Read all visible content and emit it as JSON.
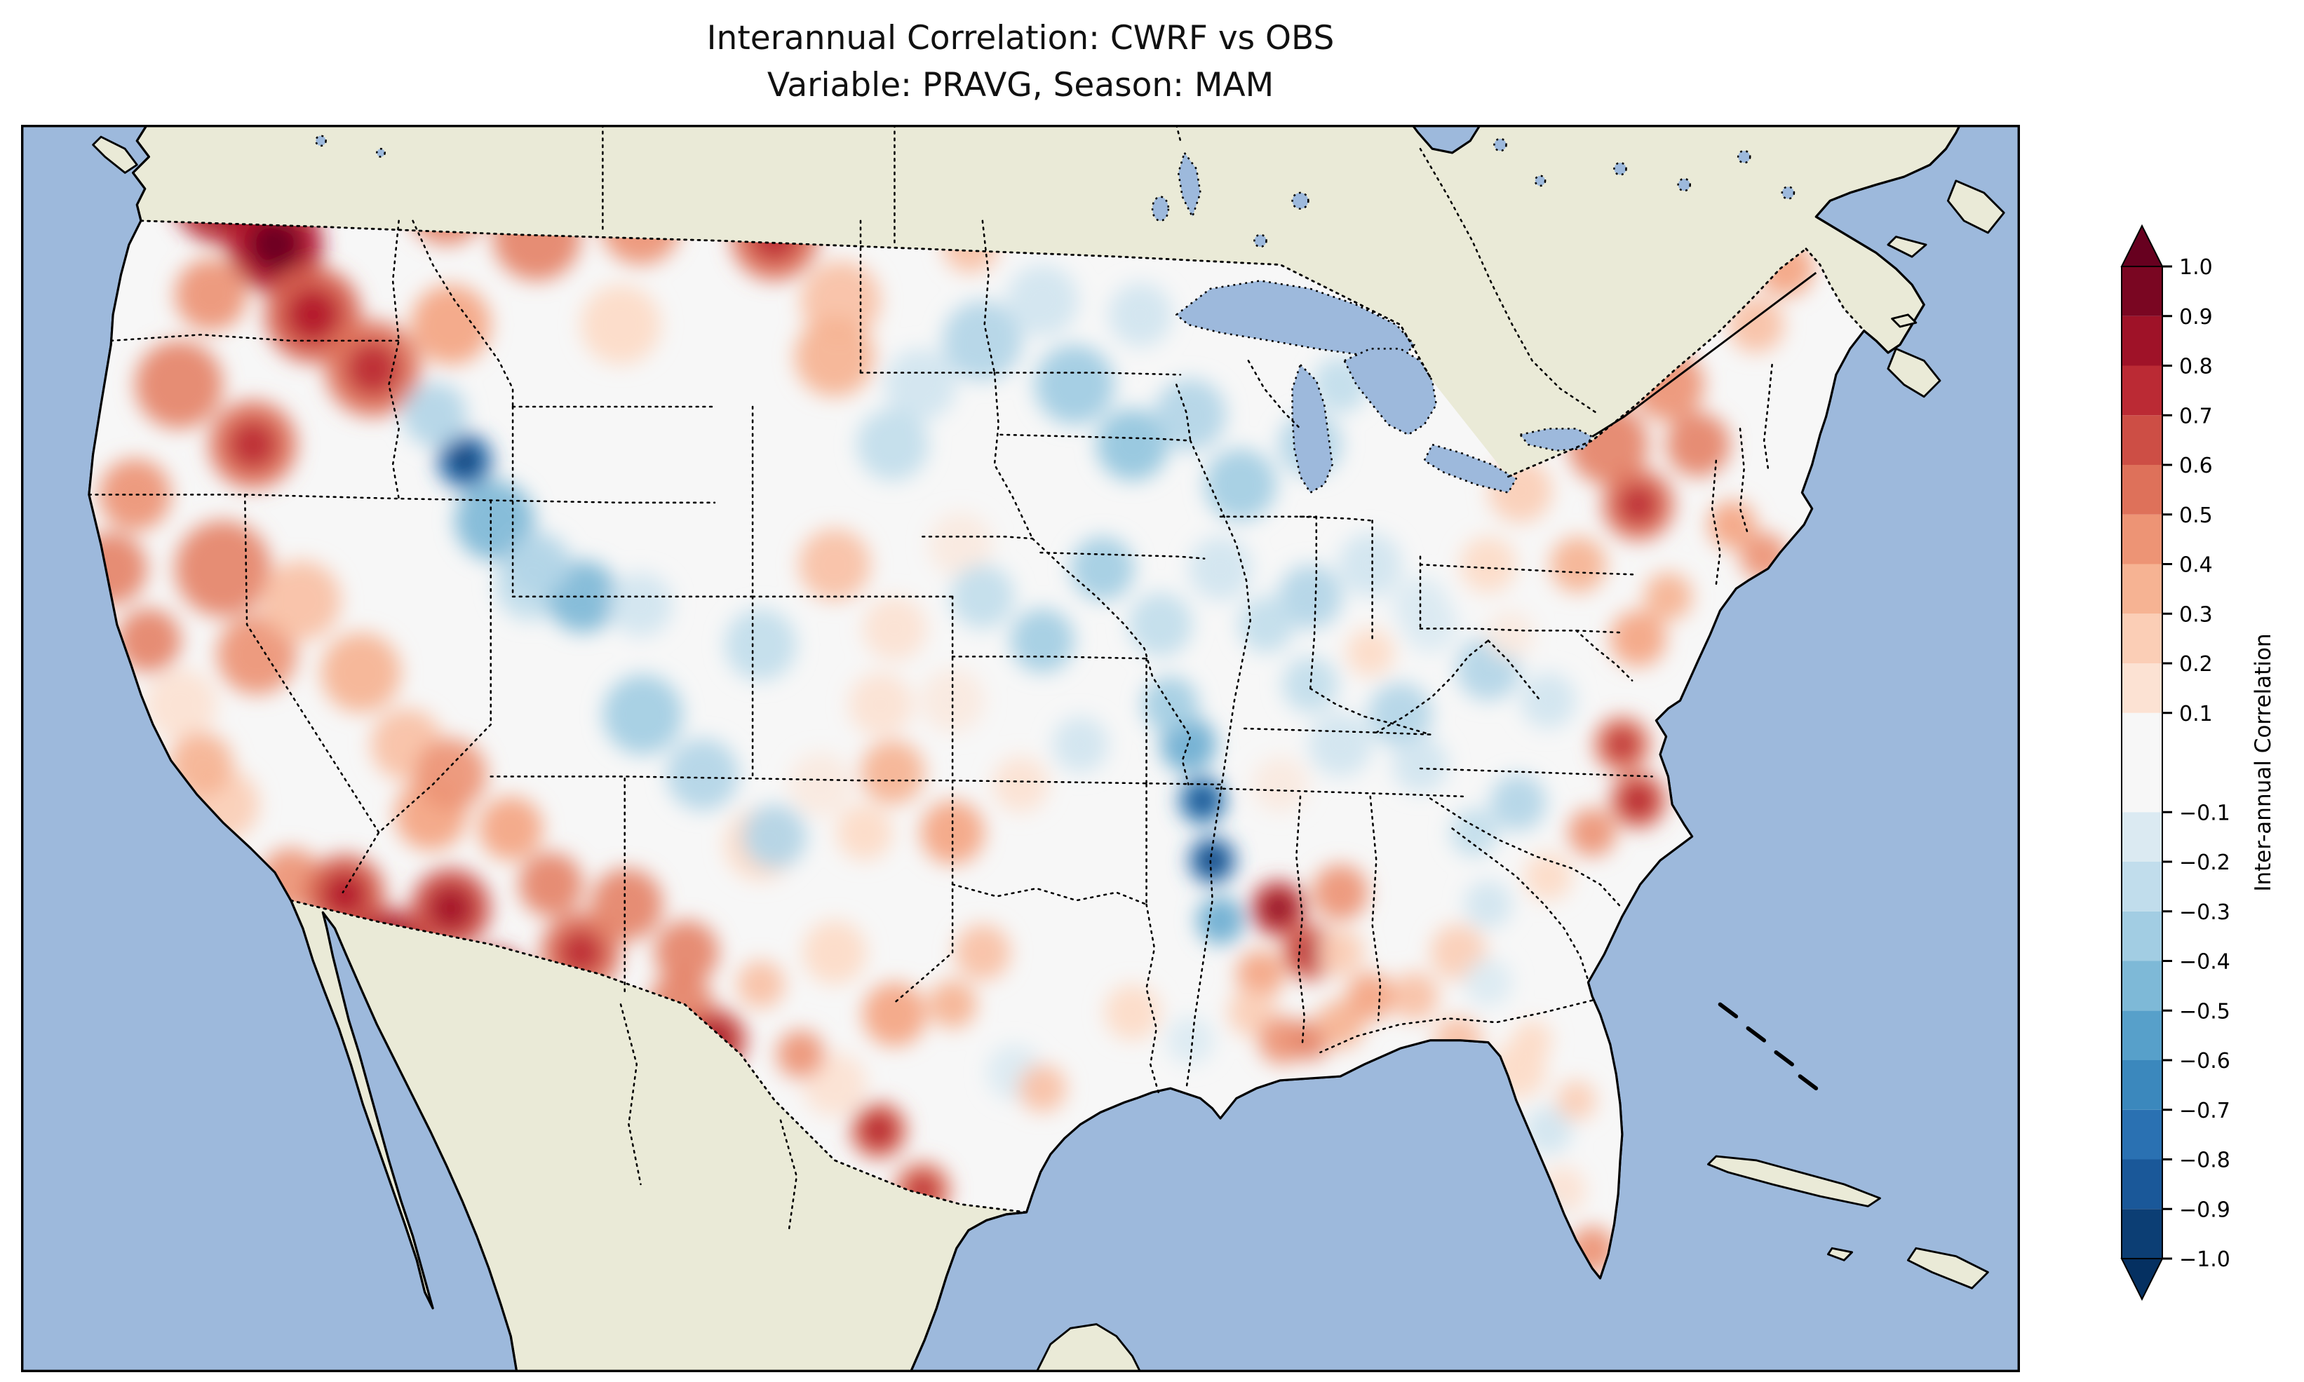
{
  "title": {
    "line1": "Interannual Correlation: CWRF vs OBS",
    "line2": "Variable: PRAVG, Season: MAM"
  },
  "colors": {
    "ocean": "#9db9dc",
    "land": "#eaead7",
    "coastline": "#000000",
    "field_base": "#f7f7f7",
    "rdbu_r_anchors": [
      "#053061",
      "#2166ac",
      "#4393c3",
      "#92c5de",
      "#d1e5f0",
      "#f7f7f7",
      "#fddbc7",
      "#f4a582",
      "#d6604d",
      "#b2182b",
      "#67001f"
    ]
  },
  "chart_data": {
    "type": "heatmap",
    "title": "Interannual Correlation: CWRF vs OBS",
    "subtitle": "Variable: PRAVG, Season: MAM",
    "comparison": "CWRF vs OBS",
    "variable": "PRAVG",
    "season": "MAM",
    "colorbar": {
      "label": "Inter-annual Correlation",
      "colormap": "RdBu_r",
      "extend": "both",
      "range": [
        -1.0,
        1.0
      ],
      "ticks": [
        1.0,
        0.9,
        0.8,
        0.7,
        0.6,
        0.5,
        0.4,
        0.3,
        0.2,
        0.1,
        -0.1,
        -0.2,
        -0.3,
        -0.4,
        -0.5,
        -0.6,
        -0.7,
        -0.8,
        -0.9,
        -1.0
      ],
      "levels": [
        -1.0,
        -0.9,
        -0.8,
        -0.7,
        -0.6,
        -0.5,
        -0.4,
        -0.3,
        -0.2,
        -0.1,
        0.1,
        0.2,
        0.3,
        0.4,
        0.5,
        0.6,
        0.7,
        0.8,
        0.9,
        1.0
      ]
    },
    "samples_note": "Approximate correlation field sampled off the map. Each sample is [x, y, value, radius] in map viewBox coords (0-1000 wide, 0-624 tall).",
    "samples": [
      [
        101,
        34,
        0.75,
        26
      ],
      [
        127,
        60,
        0.8,
        24
      ],
      [
        146,
        95,
        0.6,
        24
      ],
      [
        95,
        85,
        0.45,
        18
      ],
      [
        68,
        12,
        -0.2,
        12
      ],
      [
        138,
        26,
        0.65,
        18
      ],
      [
        213,
        40,
        0.5,
        20
      ],
      [
        79,
        130,
        0.5,
        22
      ],
      [
        116,
        160,
        0.55,
        22
      ],
      [
        57,
        185,
        0.45,
        18
      ],
      [
        45,
        222,
        0.5,
        18
      ],
      [
        101,
        222,
        0.5,
        24
      ],
      [
        118,
        265,
        0.45,
        20
      ],
      [
        64,
        258,
        0.5,
        16
      ],
      [
        80,
        290,
        0.15,
        18
      ],
      [
        101,
        340,
        0.25,
        18
      ],
      [
        135,
        378,
        0.45,
        16
      ],
      [
        90,
        320,
        0.35,
        16
      ],
      [
        140,
        238,
        0.3,
        20
      ],
      [
        170,
        274,
        0.35,
        20
      ],
      [
        193,
        310,
        0.3,
        18
      ],
      [
        205,
        345,
        0.4,
        18
      ],
      [
        176,
        122,
        0.55,
        24
      ],
      [
        215,
        100,
        0.4,
        20
      ],
      [
        258,
        56,
        0.5,
        22
      ],
      [
        310,
        50,
        0.45,
        20
      ],
      [
        377,
        56,
        0.55,
        22
      ],
      [
        300,
        100,
        0.2,
        20
      ],
      [
        410,
        88,
        0.3,
        20
      ],
      [
        222,
        168,
        -0.75,
        14
      ],
      [
        237,
        198,
        -0.45,
        20
      ],
      [
        207,
        145,
        -0.3,
        16
      ],
      [
        255,
        230,
        -0.25,
        18
      ],
      [
        215,
        325,
        0.45,
        18
      ],
      [
        245,
        352,
        0.4,
        16
      ],
      [
        162,
        385,
        0.6,
        20
      ],
      [
        184,
        414,
        0.75,
        22
      ],
      [
        215,
        392,
        0.65,
        20
      ],
      [
        237,
        430,
        0.7,
        18
      ],
      [
        280,
        414,
        0.55,
        20
      ],
      [
        303,
        390,
        0.5,
        18
      ],
      [
        330,
        440,
        0.5,
        16
      ],
      [
        265,
        380,
        0.5,
        16
      ],
      [
        281,
        236,
        -0.45,
        18
      ],
      [
        259,
        220,
        -0.3,
        16
      ],
      [
        311,
        295,
        -0.35,
        20
      ],
      [
        341,
        325,
        -0.3,
        18
      ],
      [
        370,
        260,
        -0.25,
        18
      ],
      [
        310,
        240,
        -0.2,
        16
      ],
      [
        370,
        360,
        0.2,
        18
      ],
      [
        400,
        330,
        0.1,
        16
      ],
      [
        407,
        116,
        0.35,
        20
      ],
      [
        450,
        130,
        -0.2,
        18
      ],
      [
        436,
        160,
        -0.25,
        18
      ],
      [
        481,
        108,
        -0.3,
        20
      ],
      [
        511,
        88,
        -0.2,
        18
      ],
      [
        475,
        60,
        0.3,
        14
      ],
      [
        530,
        130,
        -0.15,
        16
      ],
      [
        527,
        130,
        -0.35,
        20
      ],
      [
        556,
        160,
        -0.4,
        18
      ],
      [
        585,
        145,
        -0.3,
        18
      ],
      [
        610,
        180,
        -0.35,
        18
      ],
      [
        560,
        95,
        -0.2,
        16
      ],
      [
        407,
        220,
        0.3,
        18
      ],
      [
        437,
        252,
        0.15,
        16
      ],
      [
        470,
        210,
        0.1,
        16
      ],
      [
        466,
        288,
        0.1,
        16
      ],
      [
        430,
        290,
        0.15,
        16
      ],
      [
        481,
        236,
        -0.25,
        16
      ],
      [
        511,
        258,
        -0.35,
        16
      ],
      [
        541,
        222,
        -0.35,
        16
      ],
      [
        570,
        250,
        -0.25,
        16
      ],
      [
        600,
        222,
        -0.2,
        16
      ],
      [
        584,
        310,
        -0.5,
        14
      ],
      [
        591,
        338,
        -0.7,
        12
      ],
      [
        596,
        368,
        -0.75,
        12
      ],
      [
        600,
        398,
        -0.5,
        12
      ],
      [
        575,
        290,
        -0.35,
        14
      ],
      [
        629,
        392,
        0.7,
        14
      ],
      [
        645,
        414,
        0.6,
        14
      ],
      [
        660,
        384,
        0.45,
        14
      ],
      [
        620,
        425,
        0.4,
        12
      ],
      [
        436,
        324,
        0.35,
        16
      ],
      [
        466,
        354,
        0.4,
        16
      ],
      [
        422,
        354,
        0.2,
        14
      ],
      [
        500,
        330,
        0.15,
        14
      ],
      [
        530,
        310,
        -0.2,
        14
      ],
      [
        377,
        356,
        -0.3,
        16
      ],
      [
        333,
        414,
        0.5,
        16
      ],
      [
        347,
        458,
        0.65,
        16
      ],
      [
        407,
        414,
        0.2,
        16
      ],
      [
        437,
        445,
        0.4,
        16
      ],
      [
        481,
        414,
        0.3,
        14
      ],
      [
        429,
        503,
        0.6,
        14
      ],
      [
        451,
        533,
        0.55,
        14
      ],
      [
        497,
        474,
        -0.15,
        14
      ],
      [
        511,
        482,
        0.3,
        12
      ],
      [
        407,
        480,
        0.15,
        16
      ],
      [
        466,
        440,
        0.35,
        12
      ],
      [
        370,
        430,
        0.3,
        12
      ],
      [
        390,
        465,
        0.45,
        12
      ],
      [
        556,
        444,
        0.2,
        14
      ],
      [
        585,
        458,
        -0.15,
        12
      ],
      [
        616,
        444,
        0.25,
        12
      ],
      [
        631,
        458,
        0.45,
        12
      ],
      [
        645,
        458,
        0.5,
        10
      ],
      [
        660,
        450,
        0.35,
        12
      ],
      [
        660,
        310,
        -0.2,
        16
      ],
      [
        690,
        295,
        -0.3,
        16
      ],
      [
        645,
        280,
        -0.25,
        14
      ],
      [
        675,
        264,
        0.2,
        12
      ],
      [
        630,
        330,
        0.1,
        14
      ],
      [
        700,
        320,
        -0.2,
        14
      ],
      [
        645,
        236,
        -0.3,
        16
      ],
      [
        675,
        220,
        -0.2,
        16
      ],
      [
        623,
        250,
        -0.25,
        14
      ],
      [
        645,
        160,
        -0.3,
        16
      ],
      [
        660,
        130,
        -0.25,
        14
      ],
      [
        700,
        240,
        -0.15,
        14
      ],
      [
        734,
        272,
        -0.3,
        16
      ],
      [
        764,
        288,
        -0.2,
        14
      ],
      [
        705,
        250,
        -0.15,
        14
      ],
      [
        745,
        255,
        0.1,
        12
      ],
      [
        794,
        160,
        0.5,
        20
      ],
      [
        809,
        190,
        0.55,
        18
      ],
      [
        824,
        130,
        0.45,
        18
      ],
      [
        839,
        160,
        0.5,
        16
      ],
      [
        750,
        183,
        0.25,
        16
      ],
      [
        734,
        220,
        0.2,
        14
      ],
      [
        779,
        220,
        0.35,
        14
      ],
      [
        868,
        100,
        0.3,
        14
      ],
      [
        883,
        72,
        0.4,
        14
      ],
      [
        856,
        200,
        0.4,
        12
      ],
      [
        872,
        216,
        0.45,
        12
      ],
      [
        809,
        257,
        0.4,
        14
      ],
      [
        824,
        236,
        0.35,
        12
      ],
      [
        801,
        310,
        0.55,
        14
      ],
      [
        809,
        338,
        0.6,
        14
      ],
      [
        786,
        354,
        0.45,
        12
      ],
      [
        749,
        339,
        -0.3,
        14
      ],
      [
        727,
        354,
        -0.25,
        12
      ],
      [
        764,
        376,
        0.2,
        12
      ],
      [
        734,
        390,
        -0.2,
        12
      ],
      [
        719,
        414,
        0.25,
        14
      ],
      [
        697,
        436,
        0.3,
        12
      ],
      [
        734,
        429,
        -0.15,
        12
      ],
      [
        660,
        414,
        0.25,
        12
      ],
      [
        675,
        436,
        0.4,
        12
      ],
      [
        749,
        473,
        0.2,
        14
      ],
      [
        764,
        503,
        -0.2,
        12
      ],
      [
        771,
        533,
        0.15,
        12
      ],
      [
        786,
        563,
        0.45,
        12
      ],
      [
        719,
        458,
        0.3,
        12
      ],
      [
        756,
        458,
        0.2,
        10
      ],
      [
        778,
        488,
        0.25,
        10
      ],
      [
        760,
        545,
        -0.15,
        10
      ]
    ]
  }
}
